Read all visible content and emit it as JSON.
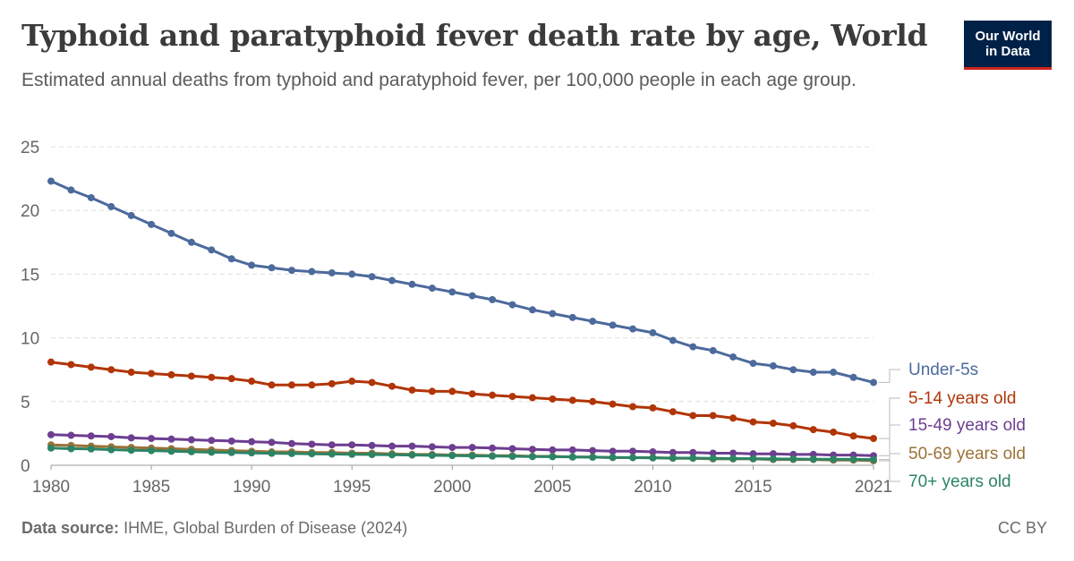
{
  "header": {
    "title": "Typhoid and paratyphoid fever death rate by age, World",
    "subtitle": "Estimated annual deaths from typhoid and paratyphoid fever, per 100,000 people in each age group.",
    "logo_line1": "Our World",
    "logo_line2": "in Data"
  },
  "footer": {
    "source_label": "Data source:",
    "source_text": "IHME, Global Burden of Disease (2024)",
    "license": "CC BY"
  },
  "chart_data": {
    "type": "line",
    "title": "Typhoid and paratyphoid fever death rate by age, World",
    "xlabel": "",
    "ylabel": "",
    "xlim": [
      1980,
      2021
    ],
    "ylim": [
      0,
      25
    ],
    "grid": true,
    "legend": "right (end labels)",
    "x_ticks": [
      1980,
      1985,
      1990,
      1995,
      2000,
      2005,
      2010,
      2015,
      2021
    ],
    "y_ticks": [
      0,
      5,
      10,
      15,
      20,
      25
    ],
    "x": [
      1980,
      1981,
      1982,
      1983,
      1984,
      1985,
      1986,
      1987,
      1988,
      1989,
      1990,
      1991,
      1992,
      1993,
      1994,
      1995,
      1996,
      1997,
      1998,
      1999,
      2000,
      2001,
      2002,
      2003,
      2004,
      2005,
      2006,
      2007,
      2008,
      2009,
      2010,
      2011,
      2012,
      2013,
      2014,
      2015,
      2016,
      2017,
      2018,
      2019,
      2020,
      2021
    ],
    "series": [
      {
        "name": "Under-5s",
        "color": "#4c6a9c",
        "values": [
          22.3,
          21.6,
          21.0,
          20.3,
          19.6,
          18.9,
          18.2,
          17.5,
          16.9,
          16.2,
          15.7,
          15.5,
          15.3,
          15.2,
          15.1,
          15.0,
          14.8,
          14.5,
          14.2,
          13.9,
          13.6,
          13.3,
          13.0,
          12.6,
          12.2,
          11.9,
          11.6,
          11.3,
          11.0,
          10.7,
          10.4,
          9.8,
          9.3,
          9.0,
          8.5,
          8.0,
          7.8,
          7.5,
          7.3,
          7.3,
          6.9,
          6.5
        ]
      },
      {
        "name": "5-14 years old",
        "color": "#b13507",
        "values": [
          8.1,
          7.9,
          7.7,
          7.5,
          7.3,
          7.2,
          7.1,
          7.0,
          6.9,
          6.8,
          6.6,
          6.3,
          6.3,
          6.3,
          6.4,
          6.6,
          6.5,
          6.2,
          5.9,
          5.8,
          5.8,
          5.6,
          5.5,
          5.4,
          5.3,
          5.2,
          5.1,
          5.0,
          4.8,
          4.6,
          4.5,
          4.2,
          3.9,
          3.9,
          3.7,
          3.4,
          3.3,
          3.1,
          2.8,
          2.6,
          2.3,
          2.1
        ]
      },
      {
        "name": "15-49 years old",
        "color": "#6d3e91",
        "values": [
          2.4,
          2.35,
          2.3,
          2.25,
          2.15,
          2.1,
          2.05,
          2.0,
          1.95,
          1.9,
          1.85,
          1.8,
          1.7,
          1.65,
          1.6,
          1.6,
          1.55,
          1.5,
          1.5,
          1.45,
          1.4,
          1.4,
          1.35,
          1.3,
          1.25,
          1.2,
          1.2,
          1.15,
          1.1,
          1.1,
          1.05,
          1.0,
          1.0,
          0.95,
          0.95,
          0.9,
          0.9,
          0.85,
          0.85,
          0.8,
          0.8,
          0.75
        ]
      },
      {
        "name": "50-69 years old",
        "color": "#9a7238",
        "values": [
          1.6,
          1.55,
          1.5,
          1.45,
          1.4,
          1.35,
          1.3,
          1.25,
          1.2,
          1.15,
          1.1,
          1.05,
          1.05,
          1.0,
          1.0,
          0.95,
          0.95,
          0.9,
          0.85,
          0.85,
          0.8,
          0.8,
          0.75,
          0.75,
          0.7,
          0.7,
          0.65,
          0.65,
          0.6,
          0.6,
          0.6,
          0.55,
          0.55,
          0.5,
          0.5,
          0.5,
          0.45,
          0.45,
          0.45,
          0.4,
          0.4,
          0.35
        ]
      },
      {
        "name": "70+ years old",
        "color": "#2c8465",
        "values": [
          1.35,
          1.3,
          1.28,
          1.22,
          1.18,
          1.15,
          1.1,
          1.06,
          1.02,
          1.0,
          0.97,
          0.94,
          0.92,
          0.9,
          0.88,
          0.86,
          0.84,
          0.82,
          0.8,
          0.78,
          0.76,
          0.74,
          0.72,
          0.7,
          0.68,
          0.67,
          0.65,
          0.63,
          0.62,
          0.6,
          0.58,
          0.57,
          0.56,
          0.54,
          0.53,
          0.52,
          0.5,
          0.49,
          0.48,
          0.47,
          0.46,
          0.45
        ]
      }
    ]
  }
}
